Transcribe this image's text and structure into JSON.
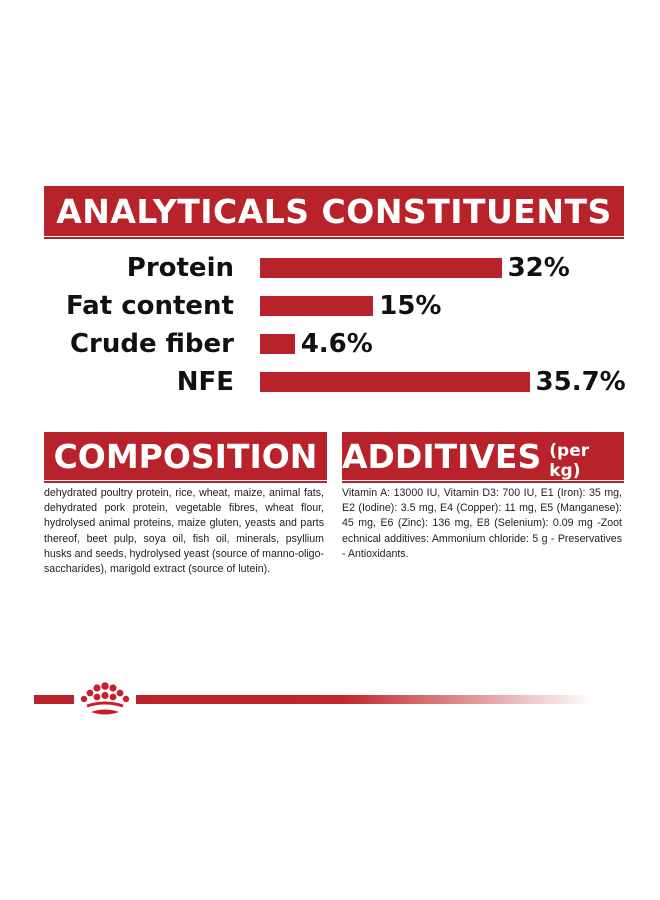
{
  "analytics": {
    "title": "ANALYTICALS CONSTITUENTS",
    "rows": [
      {
        "label": "Protein",
        "value_text": "32%",
        "value": 32
      },
      {
        "label": "Fat content",
        "value_text": "15%",
        "value": 15
      },
      {
        "label": "Crude fiber",
        "value_text": "4.6%",
        "value": 4.6
      },
      {
        "label": "NFE",
        "value_text": "35.7%",
        "value": 35.7
      }
    ]
  },
  "composition": {
    "title": "COMPOSITION",
    "text": "dehydrated poultry protein, rice, wheat, maize, animal fats, dehydrated pork protein, vegetable fibres, wheat flour, hydrolysed animal proteins, maize gluten, yeasts and parts thereof, beet pulp, soya oil, fish oil, minerals, psyllium husks and seeds, hydrolysed yeast (source of manno-oligo-saccharides), marigold extract (source of lutein)."
  },
  "additives": {
    "title": "ADDITIVES",
    "unit": "(per kg)",
    "text": "Vitamin A: 13000 IU, Vitamin D3: 700 IU, E1 (Iron): 35 mg, E2 (Iodine): 3.5 mg, E4 (Copper): 11 mg, E5 (Manganese): 45 mg, E6 (Zinc): 136 mg, E8 (Selenium): 0.09 mg -Zoot echnical additives: Ammonium chloride: 5 g - Preservatives - Antioxidants."
  },
  "colors": {
    "brand_red": "#b8222a"
  },
  "icons": {
    "crown": "crown-logo-icon"
  }
}
